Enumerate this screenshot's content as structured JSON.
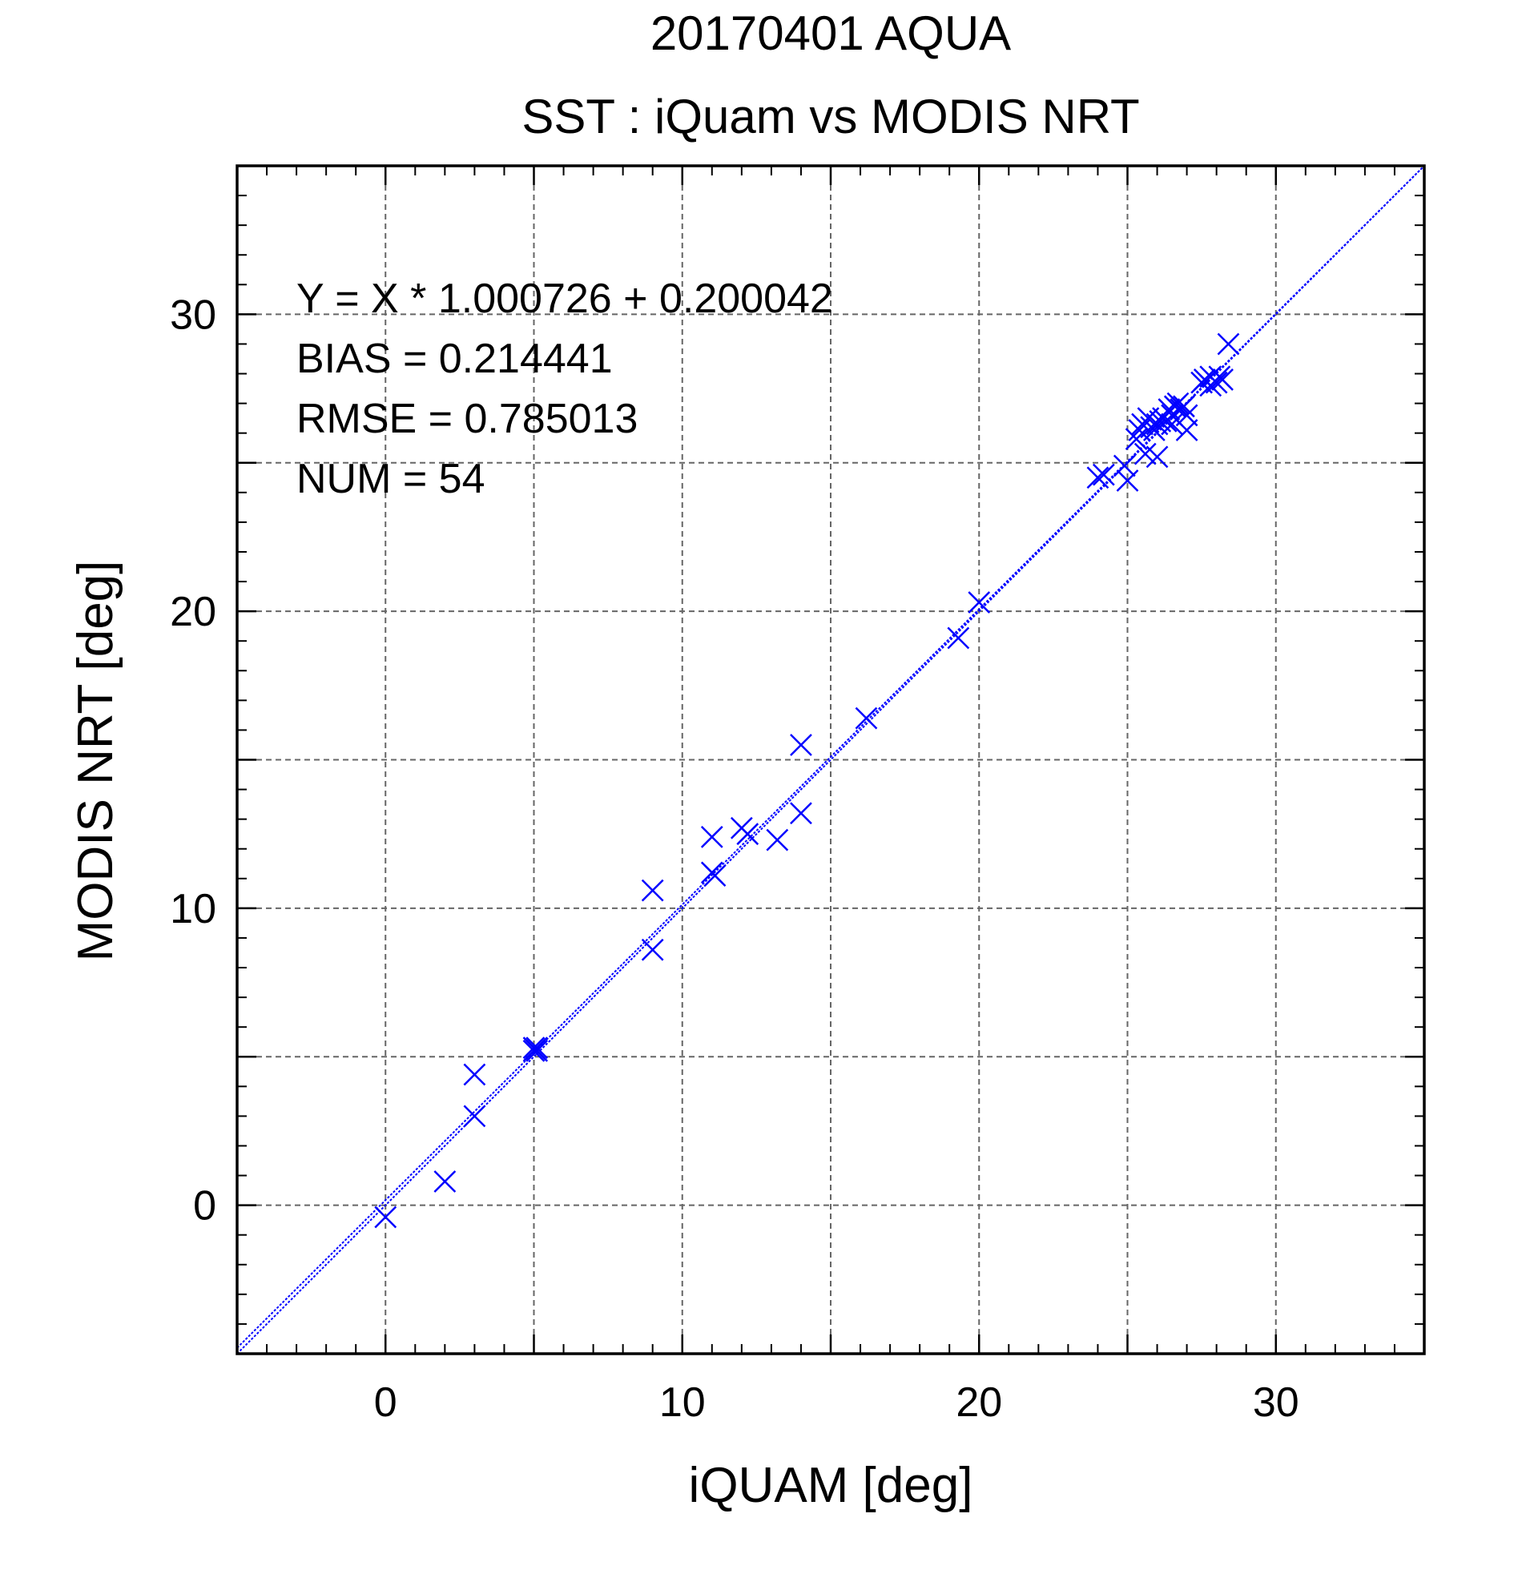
{
  "chart_data": {
    "type": "scatter",
    "title": "20170401 AQUA",
    "subtitle": "SST : iQuam vs MODIS NRT",
    "xlabel": "iQUAM [deg]",
    "ylabel": "MODIS NRT [deg]",
    "xlim": [
      -5,
      35
    ],
    "ylim": [
      -5,
      35
    ],
    "xticks": [
      0,
      10,
      20,
      30
    ],
    "yticks": [
      0,
      10,
      20,
      30
    ],
    "grid": true,
    "annotations": [
      "Y = X * 1.000726 + 0.200042",
      "BIAS = 0.214441",
      "RMSE = 0.785013",
      "NUM = 54"
    ],
    "lines": [
      {
        "slope": 1.0,
        "intercept": 0.0
      },
      {
        "slope": 1.000726,
        "intercept": 0.200042
      }
    ],
    "series": [
      {
        "color": "#0000ff",
        "marker": "x",
        "points": [
          [
            0.0,
            -0.4
          ],
          [
            2.0,
            0.8
          ],
          [
            3.0,
            3.0
          ],
          [
            3.0,
            4.4
          ],
          [
            5.0,
            5.3
          ],
          [
            5.1,
            5.3
          ],
          [
            5.0,
            5.2
          ],
          [
            5.1,
            5.2
          ],
          [
            9.0,
            8.6
          ],
          [
            9.0,
            10.6
          ],
          [
            11.0,
            11.2
          ],
          [
            11.0,
            12.4
          ],
          [
            11.1,
            11.1
          ],
          [
            12.0,
            12.7
          ],
          [
            12.2,
            12.5
          ],
          [
            13.2,
            12.3
          ],
          [
            14.0,
            13.2
          ],
          [
            14.0,
            15.5
          ],
          [
            16.2,
            16.4
          ],
          [
            19.3,
            19.1
          ],
          [
            20.0,
            20.3
          ],
          [
            24.0,
            24.5
          ],
          [
            24.2,
            24.6
          ],
          [
            24.9,
            24.9
          ],
          [
            25.0,
            24.4
          ],
          [
            25.3,
            25.8
          ],
          [
            25.4,
            26.1
          ],
          [
            25.5,
            26.3
          ],
          [
            25.6,
            25.3
          ],
          [
            25.7,
            26.5
          ],
          [
            25.8,
            26.2
          ],
          [
            25.9,
            26.1
          ],
          [
            26.0,
            25.2
          ],
          [
            26.0,
            26.3
          ],
          [
            26.1,
            26.4
          ],
          [
            26.2,
            26.5
          ],
          [
            26.3,
            26.4
          ],
          [
            26.4,
            26.8
          ],
          [
            26.5,
            26.6
          ],
          [
            26.5,
            26.3
          ],
          [
            26.6,
            26.9
          ],
          [
            26.7,
            27.0
          ],
          [
            26.8,
            26.8
          ],
          [
            26.9,
            26.9
          ],
          [
            27.0,
            26.1
          ],
          [
            27.0,
            26.6
          ],
          [
            27.5,
            27.7
          ],
          [
            27.6,
            27.8
          ],
          [
            27.8,
            27.6
          ],
          [
            27.8,
            27.9
          ],
          [
            28.0,
            27.7
          ],
          [
            28.1,
            27.9
          ],
          [
            28.2,
            27.8
          ],
          [
            28.4,
            29.0
          ]
        ]
      }
    ]
  }
}
